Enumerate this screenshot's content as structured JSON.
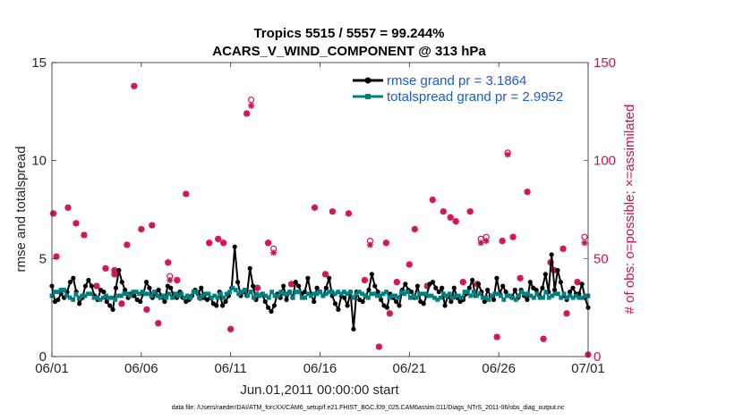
{
  "chart_data": {
    "type": "line",
    "title_line1": "Tropics 5515 / 5557 = 99.244%",
    "title_line2": "ACARS_V_WIND_COMPONENT @ 313 hPa",
    "xlabel": "Jun.01,2011 00:00:00 start",
    "ylabel_left": "rmse and totalspread",
    "ylabel_right": "# of obs: o=possible; ×=assimilated",
    "xlim": [
      0,
      30
    ],
    "ylim_left": [
      0,
      15
    ],
    "ylim_right": [
      0,
      150
    ],
    "x_ticks": [
      {
        "value": 0,
        "label": "06/01"
      },
      {
        "value": 5,
        "label": "06/06"
      },
      {
        "value": 10,
        "label": "06/11"
      },
      {
        "value": 15,
        "label": "06/16"
      },
      {
        "value": 20,
        "label": "06/21"
      },
      {
        "value": 25,
        "label": "06/26"
      },
      {
        "value": 30,
        "label": "07/01"
      }
    ],
    "y_ticks_left": [
      "0",
      "5",
      "10",
      "15"
    ],
    "y_ticks_right": [
      "0",
      "50",
      "100",
      "150"
    ],
    "legend_position": "top-right",
    "footer": "data file: /Users/raeder/DAI/ATM_forcXX/CAM6_setup/f.e21.FHIST_BGC.f09_025.CAM6assim.011/Diags_NTrS_2011-06/obs_diag_output.nc",
    "colors": {
      "rmse": "#000000",
      "spread": "#008080",
      "obs": "#d0104c"
    },
    "series": [
      {
        "name": "rmse",
        "legend": "rmse grand pr = 3.1864",
        "values": [
          3.6,
          2.8,
          2.9,
          3.2,
          3.0,
          3.3,
          3.8,
          4.0,
          3.3,
          2.7,
          3.0,
          3.6,
          3.9,
          3.6,
          3.1,
          2.9,
          3.4,
          3.3,
          2.8,
          2.6,
          2.4,
          3.5,
          4.4,
          3.8,
          3.4,
          3.0,
          3.2,
          3.1,
          2.9,
          2.8,
          3.2,
          3.8,
          3.5,
          3.0,
          3.2,
          3.4,
          3.1,
          2.8,
          3.6,
          3.5,
          3.1,
          3.0,
          3.3,
          3.0,
          2.8,
          2.9,
          3.1,
          3.4,
          3.2,
          3.5,
          3.0,
          2.9,
          3.0,
          2.7,
          2.6,
          3.3,
          2.6,
          2.8,
          3.1,
          3.5,
          5.6,
          3.8,
          3.1,
          3.3,
          3.1,
          4.5,
          3.6,
          2.9,
          3.1,
          3.2,
          2.8,
          2.5,
          2.3,
          2.6,
          3.2,
          3.0,
          3.6,
          2.9,
          3.3,
          3.0,
          3.8,
          3.6,
          3.2,
          3.3,
          4.0,
          3.2,
          2.8,
          3.5,
          3.3,
          3.1,
          3.5,
          4.0,
          3.1,
          2.7,
          2.4,
          3.1,
          3.0,
          2.6,
          3.3,
          1.4,
          3.3,
          2.9,
          2.8,
          3.1,
          3.4,
          4.2,
          3.6,
          3.3,
          2.9,
          2.6,
          2.5,
          3.2,
          3.0,
          2.8,
          2.6,
          3.4,
          3.7,
          3.4,
          3.3,
          3.0,
          3.6,
          2.8,
          2.7,
          3.1,
          3.7,
          3.8,
          3.5,
          3.3,
          3.5,
          2.6,
          3.1,
          2.8,
          3.5,
          3.0,
          2.8,
          2.9,
          3.2,
          3.5,
          3.9,
          3.1,
          3.7,
          3.3,
          2.8,
          3.4,
          3.1,
          2.9,
          4.0,
          3.2,
          3.6,
          3.3,
          3.1,
          3.0,
          3.4,
          3.0,
          3.4,
          3.1,
          2.9,
          3.8,
          3.5,
          3.4,
          3.1,
          3.5,
          4.2,
          3.3,
          5.2,
          3.4,
          4.4,
          3.8,
          3.1,
          2.9,
          3.3,
          3.5,
          3.2,
          3.2,
          3.7,
          3.0,
          2.5
        ],
        "marker": "filled-circle",
        "axis": "left"
      },
      {
        "name": "totalspread",
        "legend": "totalspread grand pr = 2.9952",
        "values": [
          3.1,
          3.3,
          3.3,
          3.4,
          3.4,
          3.1,
          3.0,
          2.9,
          3.2,
          3.0,
          3.1,
          3.1,
          3.2,
          3.2,
          3.0,
          3.0,
          2.9,
          3.0,
          3.1,
          3.0,
          3.0,
          2.9,
          3.1,
          3.1,
          3.2,
          3.2,
          3.1,
          3.3,
          3.3,
          3.2,
          3.3,
          3.2,
          3.2,
          3.1,
          3.3,
          3.1,
          3.0,
          3.1,
          3.0,
          3.2,
          3.0,
          3.2,
          3.1,
          3.2,
          3.0,
          3.1,
          3.0,
          3.3,
          3.3,
          3.0,
          3.1,
          3.2,
          3.2,
          3.0,
          3.1,
          3.0,
          3.2,
          3.0,
          3.2,
          3.3,
          3.5,
          3.4,
          3.2,
          3.3,
          3.4,
          3.1,
          3.3,
          3.0,
          3.2,
          3.1,
          3.2,
          3.1,
          3.0,
          3.3,
          3.1,
          3.1,
          3.3,
          3.2,
          3.2,
          3.3,
          3.0,
          3.3,
          3.3,
          3.0,
          3.0,
          3.2,
          3.1,
          3.2,
          3.2,
          3.3,
          3.1,
          3.2,
          3.3,
          3.3,
          3.2,
          3.3,
          3.2,
          3.3,
          3.2,
          3.3,
          3.0,
          3.2,
          3.3,
          3.2,
          3.1,
          3.0,
          3.2,
          3.2,
          3.1,
          3.1,
          3.2,
          3.3,
          3.0,
          3.1,
          3.1,
          3.0,
          3.3,
          3.2,
          3.3,
          3.0,
          3.1,
          3.0,
          3.2,
          3.2,
          3.2,
          3.1,
          3.1,
          3.0,
          2.9,
          3.0,
          3.2,
          3.1,
          3.2,
          3.0,
          3.1,
          3.1,
          3.0,
          3.3,
          3.3,
          3.1,
          3.3,
          3.1,
          3.2,
          3.0,
          3.0,
          2.9,
          3.1,
          3.2,
          3.2,
          3.1,
          2.9,
          3.1,
          3.1,
          3.0,
          2.9,
          3.1,
          3.3,
          3.2,
          3.2,
          3.1,
          3.0,
          3.2,
          3.0,
          3.0,
          3.3,
          3.0,
          3.1,
          3.2,
          3.2,
          3.0,
          3.2,
          3.0,
          3.1,
          3.0,
          3.1,
          3.0,
          3.0,
          3.1,
          3.1
        ],
        "marker": "filled-square",
        "axis": "left"
      },
      {
        "name": "obs_possible",
        "marker": "open-circle",
        "axis": "right",
        "points": [
          [
            0.08,
            73
          ],
          [
            0.25,
            51
          ],
          [
            0.9,
            76
          ],
          [
            1.35,
            68
          ],
          [
            1.8,
            62
          ],
          [
            2.5,
            36
          ],
          [
            3.0,
            45
          ],
          [
            3.5,
            44
          ],
          [
            3.5,
            42
          ],
          [
            3.9,
            27
          ],
          [
            4.2,
            57
          ],
          [
            4.6,
            138
          ],
          [
            5.0,
            65
          ],
          [
            5.3,
            24
          ],
          [
            5.6,
            67
          ],
          [
            5.95,
            17
          ],
          [
            6.5,
            48
          ],
          [
            6.6,
            41
          ],
          [
            7.0,
            39
          ],
          [
            7.5,
            83
          ],
          [
            8.3,
            30
          ],
          [
            8.8,
            58
          ],
          [
            9.3,
            60
          ],
          [
            9.6,
            58
          ],
          [
            10.0,
            14
          ],
          [
            10.9,
            124
          ],
          [
            11.15,
            131
          ],
          [
            11.5,
            35
          ],
          [
            12.1,
            58
          ],
          [
            12.4,
            55
          ],
          [
            13.4,
            37
          ],
          [
            14.7,
            76
          ],
          [
            15.3,
            42
          ],
          [
            15.7,
            74
          ],
          [
            16.6,
            73
          ],
          [
            17.5,
            39
          ],
          [
            17.8,
            59
          ],
          [
            18.3,
            5
          ],
          [
            18.7,
            58
          ],
          [
            18.9,
            22
          ],
          [
            19.3,
            38
          ],
          [
            20.0,
            47
          ],
          [
            20.3,
            65
          ],
          [
            21.0,
            36
          ],
          [
            21.3,
            80
          ],
          [
            21.9,
            74
          ],
          [
            22.3,
            71
          ],
          [
            22.6,
            69
          ],
          [
            23.0,
            38
          ],
          [
            23.4,
            74
          ],
          [
            23.8,
            37
          ],
          [
            24.0,
            60
          ],
          [
            24.3,
            61
          ],
          [
            24.9,
            10
          ],
          [
            25.2,
            59
          ],
          [
            25.5,
            104
          ],
          [
            25.8,
            61
          ],
          [
            26.2,
            40
          ],
          [
            26.6,
            84
          ],
          [
            27.5,
            9
          ],
          [
            27.9,
            48
          ],
          [
            28.1,
            44
          ],
          [
            28.6,
            55
          ],
          [
            28.8,
            22
          ],
          [
            29.4,
            38
          ],
          [
            29.8,
            61
          ],
          [
            30.0,
            1
          ]
        ]
      },
      {
        "name": "obs_assimilated",
        "marker": "asterisk",
        "axis": "right",
        "points": [
          [
            0.08,
            73
          ],
          [
            0.25,
            51
          ],
          [
            0.9,
            76
          ],
          [
            1.35,
            68
          ],
          [
            1.8,
            62
          ],
          [
            2.5,
            36
          ],
          [
            3.0,
            45
          ],
          [
            3.5,
            44
          ],
          [
            3.5,
            42
          ],
          [
            3.9,
            27
          ],
          [
            4.2,
            57
          ],
          [
            4.6,
            138
          ],
          [
            5.0,
            65
          ],
          [
            5.3,
            24
          ],
          [
            5.6,
            67
          ],
          [
            5.95,
            17
          ],
          [
            6.5,
            48
          ],
          [
            6.6,
            39
          ],
          [
            7.0,
            39
          ],
          [
            7.5,
            83
          ],
          [
            8.3,
            30
          ],
          [
            8.8,
            58
          ],
          [
            9.3,
            60
          ],
          [
            9.6,
            58
          ],
          [
            10.0,
            14
          ],
          [
            10.9,
            124
          ],
          [
            11.15,
            128
          ],
          [
            11.5,
            35
          ],
          [
            12.1,
            58
          ],
          [
            12.4,
            53
          ],
          [
            13.4,
            37
          ],
          [
            14.7,
            76
          ],
          [
            15.3,
            42
          ],
          [
            15.7,
            74
          ],
          [
            16.6,
            73
          ],
          [
            17.5,
            39
          ],
          [
            17.8,
            57
          ],
          [
            18.3,
            5
          ],
          [
            18.7,
            58
          ],
          [
            18.9,
            22
          ],
          [
            19.3,
            38
          ],
          [
            20.0,
            47
          ],
          [
            20.3,
            65
          ],
          [
            21.0,
            36
          ],
          [
            21.3,
            80
          ],
          [
            21.9,
            74
          ],
          [
            22.3,
            71
          ],
          [
            22.6,
            69
          ],
          [
            23.0,
            38
          ],
          [
            23.4,
            74
          ],
          [
            23.8,
            37
          ],
          [
            24.0,
            58
          ],
          [
            24.3,
            59
          ],
          [
            24.9,
            10
          ],
          [
            25.2,
            59
          ],
          [
            25.5,
            103
          ],
          [
            25.8,
            61
          ],
          [
            26.2,
            40
          ],
          [
            26.6,
            84
          ],
          [
            27.5,
            9
          ],
          [
            27.9,
            48
          ],
          [
            28.1,
            44
          ],
          [
            28.6,
            55
          ],
          [
            28.8,
            22
          ],
          [
            29.4,
            38
          ],
          [
            29.8,
            58
          ],
          [
            30.0,
            1
          ]
        ]
      }
    ]
  }
}
